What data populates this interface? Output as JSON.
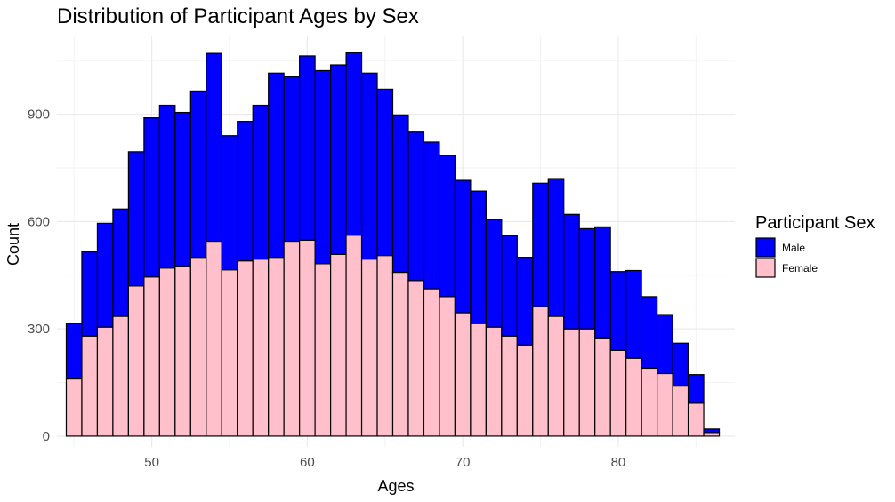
{
  "chart_data": {
    "type": "bar",
    "stacked": true,
    "title": "Distribution of Participant Ages by Sex",
    "xlabel": "Ages",
    "ylabel": "Count",
    "xlim": [
      43.9,
      87.5
    ],
    "ylim": [
      -30,
      1120
    ],
    "x_ticks": [
      50,
      60,
      70,
      80
    ],
    "y_ticks": [
      0,
      300,
      600,
      900
    ],
    "grid": true,
    "legend": {
      "title": "Participant Sex",
      "position": "right"
    },
    "categories": [
      45,
      46,
      47,
      48,
      49,
      50,
      51,
      52,
      53,
      54,
      55,
      56,
      57,
      58,
      59,
      60,
      61,
      62,
      63,
      64,
      65,
      66,
      67,
      68,
      69,
      70,
      71,
      72,
      73,
      74,
      75,
      76,
      77,
      78,
      79,
      80,
      81,
      82,
      83,
      84,
      85,
      86
    ],
    "series": [
      {
        "name": "Male",
        "color": "#0000ff",
        "values": [
          155,
          235,
          290,
          300,
          375,
          445,
          455,
          430,
          465,
          525,
          375,
          390,
          430,
          515,
          460,
          515,
          540,
          530,
          510,
          520,
          465,
          440,
          415,
          410,
          395,
          370,
          370,
          300,
          280,
          245,
          345,
          385,
          320,
          280,
          310,
          220,
          245,
          200,
          165,
          120,
          80,
          10
        ]
      },
      {
        "name": "Female",
        "color": "#ffc0cb",
        "values": [
          160,
          280,
          305,
          335,
          420,
          445,
          470,
          475,
          500,
          545,
          465,
          490,
          495,
          500,
          545,
          548,
          482,
          508,
          562,
          495,
          505,
          458,
          435,
          412,
          390,
          345,
          315,
          305,
          280,
          255,
          362,
          335,
          300,
          300,
          275,
          240,
          218,
          190,
          175,
          140,
          92,
          10
        ]
      }
    ]
  }
}
